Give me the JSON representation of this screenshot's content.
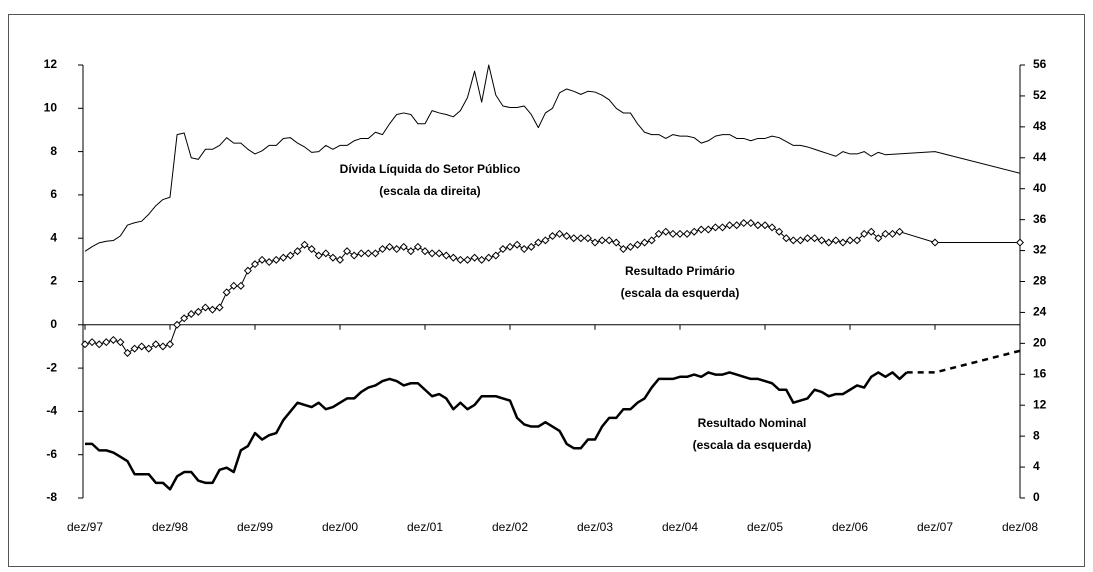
{
  "chart_data": {
    "type": "line",
    "xlim": [
      0,
      132
    ],
    "xticks": [
      {
        "value": 0,
        "label": "dez/97"
      },
      {
        "value": 12,
        "label": "dez/98"
      },
      {
        "value": 24,
        "label": "dez/99"
      },
      {
        "value": 36,
        "label": "dez/00"
      },
      {
        "value": 48,
        "label": "dez/01"
      },
      {
        "value": 60,
        "label": "dez/02"
      },
      {
        "value": 72,
        "label": "dez/03"
      },
      {
        "value": 84,
        "label": "dez/04"
      },
      {
        "value": 96,
        "label": "dez/05"
      },
      {
        "value": 108,
        "label": "dez/06"
      },
      {
        "value": 120,
        "label": "dez/07"
      },
      {
        "value": 132,
        "label": "dez/08"
      }
    ],
    "ylim": [
      -8,
      12
    ],
    "yticks": [
      -8,
      -6,
      -4,
      -2,
      0,
      2,
      4,
      6,
      8,
      10,
      12
    ],
    "y2lim": [
      0,
      56
    ],
    "y2ticks": [
      0,
      4,
      8,
      12,
      16,
      20,
      24,
      28,
      32,
      36,
      40,
      44,
      48,
      52,
      56
    ],
    "series": [
      {
        "name": "Dívida Líquida do Setor Público",
        "scale_note": "(escala da direita)",
        "axis": "y2",
        "color": "#000000",
        "width": 1,
        "x": [
          0,
          1,
          2,
          3,
          4,
          5,
          6,
          7,
          8,
          9,
          10,
          11,
          12,
          13,
          14,
          15,
          16,
          17,
          18,
          19,
          20,
          21,
          22,
          23,
          24,
          25,
          26,
          27,
          28,
          29,
          30,
          31,
          32,
          33,
          34,
          35,
          36,
          37,
          38,
          39,
          40,
          41,
          42,
          43,
          44,
          45,
          46,
          47,
          48,
          49,
          50,
          51,
          52,
          53,
          54,
          55,
          56,
          57,
          58,
          59,
          60,
          61,
          62,
          63,
          64,
          65,
          66,
          67,
          68,
          69,
          70,
          71,
          72,
          73,
          74,
          75,
          76,
          77,
          78,
          79,
          80,
          81,
          82,
          83,
          84,
          85,
          86,
          87,
          88,
          89,
          90,
          91,
          92,
          93,
          94,
          95,
          96,
          97,
          98,
          99,
          100,
          101,
          102,
          103,
          104,
          105,
          106,
          107,
          108,
          109,
          110,
          111,
          112,
          113,
          120,
          132
        ],
        "values": [
          31.9,
          32.5,
          33.0,
          33.2,
          33.3,
          33.9,
          35.3,
          35.6,
          35.8,
          36.7,
          37.8,
          38.6,
          38.9,
          47.0,
          47.2,
          44.0,
          43.8,
          45.1,
          45.1,
          45.6,
          46.6,
          45.9,
          45.9,
          45.1,
          44.5,
          44.9,
          45.6,
          45.6,
          46.5,
          46.6,
          45.9,
          45.4,
          44.7,
          44.8,
          45.6,
          45.1,
          45.6,
          45.6,
          46.2,
          46.5,
          46.5,
          47.3,
          47.0,
          48.4,
          49.6,
          49.8,
          49.6,
          48.4,
          48.4,
          50.1,
          49.8,
          49.6,
          49.3,
          50.1,
          51.8,
          55.2,
          51.2,
          56.0,
          52.1,
          50.7,
          50.5,
          50.5,
          50.7,
          49.6,
          47.9,
          49.8,
          50.4,
          52.4,
          52.9,
          52.6,
          52.2,
          52.6,
          52.5,
          52.1,
          51.5,
          50.4,
          49.8,
          49.8,
          48.4,
          47.3,
          47.0,
          47.0,
          46.5,
          47.0,
          46.8,
          46.8,
          46.6,
          45.9,
          46.2,
          46.8,
          47.0,
          47.0,
          46.5,
          46.5,
          46.2,
          46.5,
          46.5,
          46.8,
          46.6,
          46.1,
          45.6,
          45.6,
          45.4,
          45.1,
          44.8,
          44.5,
          44.2,
          44.8,
          44.5,
          44.5,
          44.8,
          44.2,
          44.7,
          44.4,
          44.8,
          42.0
        ]
      },
      {
        "name": "Resultado Primário",
        "scale_note": "(escala da esquerda)",
        "color": "#000000",
        "width": 1,
        "marker": "diamond",
        "x": [
          0,
          1,
          2,
          3,
          4,
          5,
          6,
          7,
          8,
          9,
          10,
          11,
          12,
          13,
          14,
          15,
          16,
          17,
          18,
          19,
          20,
          21,
          22,
          23,
          24,
          25,
          26,
          27,
          28,
          29,
          30,
          31,
          32,
          33,
          34,
          35,
          36,
          37,
          38,
          39,
          40,
          41,
          42,
          43,
          44,
          45,
          46,
          47,
          48,
          49,
          50,
          51,
          52,
          53,
          54,
          55,
          56,
          57,
          58,
          59,
          60,
          61,
          62,
          63,
          64,
          65,
          66,
          67,
          68,
          69,
          70,
          71,
          72,
          73,
          74,
          75,
          76,
          77,
          78,
          79,
          80,
          81,
          82,
          83,
          84,
          85,
          86,
          87,
          88,
          89,
          90,
          91,
          92,
          93,
          94,
          95,
          96,
          97,
          98,
          99,
          100,
          101,
          102,
          103,
          104,
          105,
          106,
          107,
          108,
          109,
          110,
          111,
          112,
          113,
          114,
          115,
          120,
          132
        ],
        "values": [
          -0.9,
          -0.8,
          -0.9,
          -0.8,
          -0.7,
          -0.8,
          -1.3,
          -1.1,
          -1.0,
          -1.1,
          -0.9,
          -1.0,
          -0.9,
          0.0,
          0.3,
          0.5,
          0.6,
          0.8,
          0.7,
          0.8,
          1.5,
          1.8,
          1.8,
          2.5,
          2.8,
          3.0,
          2.9,
          3.0,
          3.1,
          3.2,
          3.4,
          3.7,
          3.5,
          3.2,
          3.3,
          3.1,
          3.0,
          3.4,
          3.2,
          3.3,
          3.3,
          3.3,
          3.5,
          3.6,
          3.5,
          3.6,
          3.4,
          3.6,
          3.4,
          3.3,
          3.3,
          3.2,
          3.1,
          3.0,
          3.0,
          3.1,
          3.0,
          3.1,
          3.2,
          3.5,
          3.6,
          3.7,
          3.5,
          3.6,
          3.8,
          3.9,
          4.1,
          4.2,
          4.1,
          4.0,
          4.0,
          4.0,
          3.8,
          3.9,
          3.9,
          3.8,
          3.5,
          3.6,
          3.7,
          3.8,
          3.9,
          4.2,
          4.3,
          4.2,
          4.2,
          4.2,
          4.3,
          4.4,
          4.4,
          4.5,
          4.5,
          4.6,
          4.6,
          4.7,
          4.7,
          4.6,
          4.6,
          4.5,
          4.3,
          4.0,
          3.9,
          3.9,
          4.0,
          4.0,
          3.9,
          3.8,
          3.9,
          3.8,
          3.9,
          3.9,
          4.2,
          4.3,
          4.0,
          4.2,
          4.2,
          4.3,
          3.8,
          3.8
        ]
      },
      {
        "name": "Resultado Nominal",
        "scale_note": "(escala da esquerda)",
        "color": "#000000",
        "width": 2.5,
        "x": [
          0,
          1,
          2,
          3,
          4,
          5,
          6,
          7,
          8,
          9,
          10,
          11,
          12,
          13,
          14,
          15,
          16,
          17,
          18,
          19,
          20,
          21,
          22,
          23,
          24,
          25,
          26,
          27,
          28,
          29,
          30,
          31,
          32,
          33,
          34,
          35,
          36,
          37,
          38,
          39,
          40,
          41,
          42,
          43,
          44,
          45,
          46,
          47,
          48,
          49,
          50,
          51,
          52,
          53,
          54,
          55,
          56,
          57,
          58,
          59,
          60,
          61,
          62,
          63,
          64,
          65,
          66,
          67,
          68,
          69,
          70,
          71,
          72,
          73,
          74,
          75,
          76,
          77,
          78,
          79,
          80,
          81,
          82,
          83,
          84,
          85,
          86,
          87,
          88,
          89,
          90,
          91,
          92,
          93,
          94,
          95,
          96,
          97,
          98,
          99,
          100,
          101,
          102,
          103,
          104,
          105,
          106,
          107,
          108,
          109,
          110,
          111,
          112,
          113,
          114,
          115,
          116
        ],
        "values": [
          -5.5,
          -5.5,
          -5.8,
          -5.8,
          -5.9,
          -6.1,
          -6.3,
          -6.9,
          -6.9,
          -6.9,
          -7.3,
          -7.3,
          -7.6,
          -7.0,
          -6.8,
          -6.8,
          -7.2,
          -7.3,
          -7.3,
          -6.7,
          -6.6,
          -6.8,
          -5.8,
          -5.6,
          -5.0,
          -5.3,
          -5.1,
          -5.0,
          -4.4,
          -4.0,
          -3.6,
          -3.7,
          -3.8,
          -3.6,
          -3.9,
          -3.8,
          -3.6,
          -3.4,
          -3.4,
          -3.1,
          -2.9,
          -2.8,
          -2.6,
          -2.5,
          -2.6,
          -2.8,
          -2.7,
          -2.7,
          -3.0,
          -3.3,
          -3.2,
          -3.4,
          -3.9,
          -3.6,
          -3.9,
          -3.7,
          -3.3,
          -3.3,
          -3.3,
          -3.4,
          -3.5,
          -4.3,
          -4.6,
          -4.7,
          -4.7,
          -4.5,
          -4.7,
          -4.9,
          -5.5,
          -5.7,
          -5.7,
          -5.3,
          -5.3,
          -4.7,
          -4.3,
          -4.3,
          -3.9,
          -3.9,
          -3.6,
          -3.4,
          -2.9,
          -2.5,
          -2.5,
          -2.5,
          -2.4,
          -2.4,
          -2.3,
          -2.4,
          -2.2,
          -2.3,
          -2.3,
          -2.2,
          -2.3,
          -2.4,
          -2.5,
          -2.5,
          -2.6,
          -2.7,
          -3.0,
          -3.0,
          -3.6,
          -3.5,
          -3.4,
          -3.0,
          -3.1,
          -3.3,
          -3.2,
          -3.2,
          -3.0,
          -2.8,
          -2.9,
          -2.4,
          -2.2,
          -2.4,
          -2.2,
          -2.5,
          -2.2
        ]
      },
      {
        "color": "#000000",
        "width": 2.5,
        "dash": true,
        "x": [
          116,
          120,
          126,
          132
        ],
        "values": [
          -2.2,
          -2.2,
          -1.7,
          -1.2
        ]
      }
    ]
  }
}
